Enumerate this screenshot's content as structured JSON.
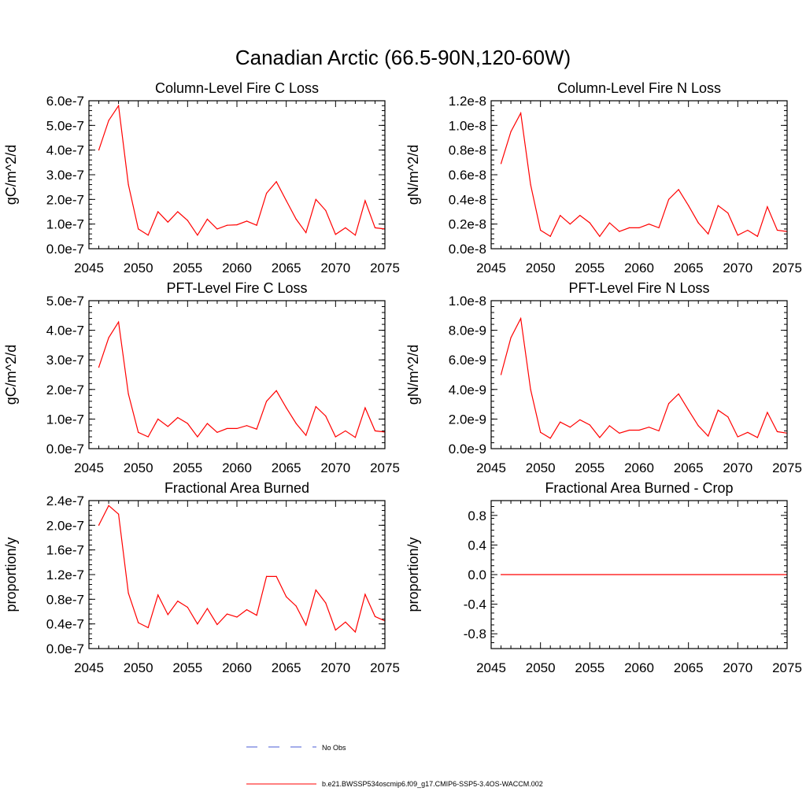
{
  "figure": {
    "title": "Canadian Arctic (66.5-90N,120-60W)",
    "legend": [
      {
        "label": "No Obs",
        "style": "dashed",
        "color": "#4a5bd6"
      },
      {
        "label": "b.e21.BWSSP534oscmip6.f09_g17.CMIP6-SSP5-3.4OS-WACCM.002",
        "style": "solid",
        "color": "#ff0000"
      }
    ]
  },
  "chart_data": [
    {
      "type": "line",
      "title": "Column-Level Fire C Loss",
      "ylabel": "gC/m^2/d",
      "xlim": [
        2045,
        2075
      ],
      "ylim": [
        0,
        6e-07
      ],
      "x_ticks": [
        "2045",
        "2050",
        "2055",
        "2060",
        "2065",
        "2070",
        "2075"
      ],
      "y_ticks": [
        "0.0e-7",
        "1.0e-7",
        "2.0e-7",
        "3.0e-7",
        "4.0e-7",
        "5.0e-7",
        "6.0e-7"
      ],
      "x": [
        2046,
        2047,
        2048,
        2049,
        2050,
        2051,
        2052,
        2053,
        2054,
        2055,
        2056,
        2057,
        2058,
        2059,
        2060,
        2061,
        2062,
        2063,
        2064,
        2065,
        2066,
        2067,
        2068,
        2069,
        2070,
        2071,
        2072,
        2073,
        2074,
        2075
      ],
      "series": [
        {
          "values": [
            4e-07,
            5.2e-07,
            5.8e-07,
            2.6e-07,
            8e-08,
            5.5e-08,
            1.5e-07,
            1.08e-07,
            1.5e-07,
            1.15e-07,
            5.5e-08,
            1.2e-07,
            8e-08,
            9.5e-08,
            9.7e-08,
            1.12e-07,
            9.5e-08,
            2.25e-07,
            2.72e-07,
            1.95e-07,
            1.2e-07,
            6.5e-08,
            2e-07,
            1.55e-07,
            5.8e-08,
            8.5e-08,
            5.5e-08,
            1.95e-07,
            8.5e-08,
            8e-08
          ],
          "color": "#ff0000"
        }
      ]
    },
    {
      "type": "line",
      "title": "Column-Level Fire N Loss",
      "ylabel": "gN/m^2/d",
      "xlim": [
        2045,
        2075
      ],
      "ylim": [
        0,
        1.2e-08
      ],
      "x_ticks": [
        "2045",
        "2050",
        "2055",
        "2060",
        "2065",
        "2070",
        "2075"
      ],
      "y_ticks": [
        "0.0e-8",
        "0.2e-8",
        "0.4e-8",
        "0.6e-8",
        "0.8e-8",
        "1.0e-8",
        "1.2e-8"
      ],
      "x": [
        2046,
        2047,
        2048,
        2049,
        2050,
        2051,
        2052,
        2053,
        2054,
        2055,
        2056,
        2057,
        2058,
        2059,
        2060,
        2061,
        2062,
        2063,
        2064,
        2065,
        2066,
        2067,
        2068,
        2069,
        2070,
        2071,
        2072,
        2073,
        2074,
        2075
      ],
      "series": [
        {
          "values": [
            6.9e-09,
            9.5e-09,
            1.1e-08,
            5.2e-09,
            1.5e-09,
            1e-09,
            2.7e-09,
            2e-09,
            2.7e-09,
            2.1e-09,
            1e-09,
            2.1e-09,
            1.4e-09,
            1.7e-09,
            1.7e-09,
            2e-09,
            1.7e-09,
            4e-09,
            4.8e-09,
            3.5e-09,
            2.1e-09,
            1.2e-09,
            3.5e-09,
            2.9e-09,
            1.1e-09,
            1.5e-09,
            1e-09,
            3.4e-09,
            1.5e-09,
            1.4e-09
          ],
          "color": "#ff0000"
        }
      ]
    },
    {
      "type": "line",
      "title": "PFT-Level Fire C Loss",
      "ylabel": "gC/m^2/d",
      "xlim": [
        2045,
        2075
      ],
      "ylim": [
        0,
        5e-07
      ],
      "x_ticks": [
        "2045",
        "2050",
        "2055",
        "2060",
        "2065",
        "2070",
        "2075"
      ],
      "y_ticks": [
        "0.0e-7",
        "1.0e-7",
        "2.0e-7",
        "3.0e-7",
        "4.0e-7",
        "5.0e-7"
      ],
      "x": [
        2046,
        2047,
        2048,
        2049,
        2050,
        2051,
        2052,
        2053,
        2054,
        2055,
        2056,
        2057,
        2058,
        2059,
        2060,
        2061,
        2062,
        2063,
        2064,
        2065,
        2066,
        2067,
        2068,
        2069,
        2070,
        2071,
        2072,
        2073,
        2074,
        2075
      ],
      "series": [
        {
          "values": [
            2.75e-07,
            3.75e-07,
            4.28e-07,
            1.85e-07,
            5.5e-08,
            4e-08,
            1e-07,
            7.5e-08,
            1.05e-07,
            8.5e-08,
            4e-08,
            8.5e-08,
            5.5e-08,
            6.8e-08,
            6.8e-08,
            7.8e-08,
            6.6e-08,
            1.6e-07,
            1.96e-07,
            1.38e-07,
            8.5e-08,
            4.5e-08,
            1.42e-07,
            1.1e-07,
            4e-08,
            6e-08,
            3.8e-08,
            1.38e-07,
            6e-08,
            5.6e-08
          ],
          "color": "#ff0000"
        }
      ]
    },
    {
      "type": "line",
      "title": "PFT-Level Fire N Loss",
      "ylabel": "gN/m^2/d",
      "xlim": [
        2045,
        2075
      ],
      "ylim": [
        0,
        1e-08
      ],
      "x_ticks": [
        "2045",
        "2050",
        "2055",
        "2060",
        "2065",
        "2070",
        "2075"
      ],
      "y_ticks": [
        "0.0e-9",
        "2.0e-9",
        "4.0e-9",
        "6.0e-9",
        "8.0e-9",
        "1.0e-8"
      ],
      "x": [
        2046,
        2047,
        2048,
        2049,
        2050,
        2051,
        2052,
        2053,
        2054,
        2055,
        2056,
        2057,
        2058,
        2059,
        2060,
        2061,
        2062,
        2063,
        2064,
        2065,
        2066,
        2067,
        2068,
        2069,
        2070,
        2071,
        2072,
        2073,
        2074,
        2075
      ],
      "series": [
        {
          "values": [
            5e-09,
            7.5e-09,
            8.8e-09,
            4e-09,
            1.1e-09,
            7e-10,
            1.8e-09,
            1.45e-09,
            1.95e-09,
            1.6e-09,
            7.5e-10,
            1.55e-09,
            1.05e-09,
            1.25e-09,
            1.25e-09,
            1.45e-09,
            1.2e-09,
            3.05e-09,
            3.7e-09,
            2.6e-09,
            1.55e-09,
            8.5e-10,
            2.6e-09,
            2.15e-09,
            8e-10,
            1.1e-09,
            7.5e-10,
            2.45e-09,
            1.15e-09,
            1.05e-09
          ],
          "color": "#ff0000"
        }
      ]
    },
    {
      "type": "line",
      "title": "Fractional Area Burned",
      "ylabel": "proportion/y",
      "xlim": [
        2045,
        2075
      ],
      "ylim": [
        0,
        2.4e-07
      ],
      "x_ticks": [
        "2045",
        "2050",
        "2055",
        "2060",
        "2065",
        "2070",
        "2075"
      ],
      "y_ticks": [
        "0.0e-7",
        "0.4e-7",
        "0.8e-7",
        "1.2e-7",
        "1.6e-7",
        "2.0e-7",
        "2.4e-7"
      ],
      "x": [
        2046,
        2047,
        2048,
        2049,
        2050,
        2051,
        2052,
        2053,
        2054,
        2055,
        2056,
        2057,
        2058,
        2059,
        2060,
        2061,
        2062,
        2063,
        2064,
        2065,
        2066,
        2067,
        2068,
        2069,
        2070,
        2071,
        2072,
        2073,
        2074,
        2075
      ],
      "series": [
        {
          "values": [
            2e-07,
            2.32e-07,
            2.18e-07,
            9e-08,
            4.2e-08,
            3.4e-08,
            8.7e-08,
            5.5e-08,
            7.7e-08,
            6.7e-08,
            4e-08,
            6.5e-08,
            3.9e-08,
            5.6e-08,
            5.1e-08,
            6.3e-08,
            5.4e-08,
            1.17e-07,
            1.17e-07,
            8.4e-08,
            6.9e-08,
            3.8e-08,
            9.5e-08,
            7.4e-08,
            3e-08,
            4.3e-08,
            2.7e-08,
            8.8e-08,
            5.2e-08,
            4.5e-08
          ],
          "color": "#ff0000"
        }
      ]
    },
    {
      "type": "line",
      "title": "Fractional Area Burned - Crop",
      "ylabel": "proportion/y",
      "xlim": [
        2045,
        2075
      ],
      "ylim": [
        -1,
        1
      ],
      "x_ticks": [
        "2045",
        "2050",
        "2055",
        "2060",
        "2065",
        "2070",
        "2075"
      ],
      "y_ticks": [
        "-0.8",
        "-0.4",
        "0.0",
        "0.4",
        "0.8"
      ],
      "y_tick_values": [
        -0.8,
        -0.4,
        0,
        0.4,
        0.8
      ],
      "x": [
        2046,
        2075
      ],
      "series": [
        {
          "values": [
            0,
            0
          ],
          "color": "#ff0000"
        }
      ]
    }
  ]
}
